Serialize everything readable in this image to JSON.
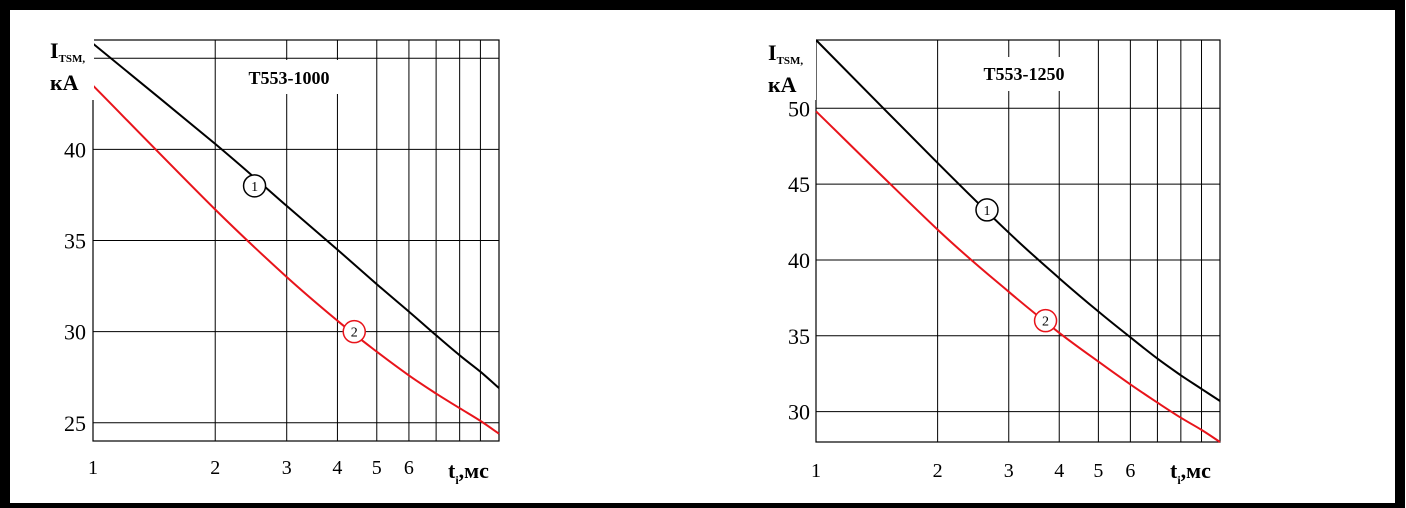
{
  "colors": {
    "border": "#000000",
    "grid": "#000000",
    "series_1": "#000000",
    "series_2": "#e8141b"
  },
  "chart_data": [
    {
      "type": "line",
      "title": "T553-1000",
      "ylabel": {
        "main": "I",
        "sub": "TSM,",
        "unit": "кА"
      },
      "xlabel": {
        "main": "t",
        "sub": "i",
        "unit": ",мс"
      },
      "xscale": "log",
      "xlim": [
        1,
        10
      ],
      "ylim": [
        24,
        46
      ],
      "x_ticks": [
        1,
        2,
        3,
        4,
        5,
        6
      ],
      "x_ticks_minor": [
        7,
        8,
        9
      ],
      "y_ticks": [
        25,
        30,
        35,
        40
      ],
      "y_grid": [
        25,
        30,
        35,
        40,
        45
      ],
      "grid": true,
      "series": [
        {
          "marker": "1",
          "marker_at": [
            2.5,
            38.0
          ],
          "x": [
            1,
            2,
            3,
            4,
            5,
            6,
            7,
            8,
            9,
            10
          ],
          "y": [
            45.8,
            40.3,
            36.9,
            34.5,
            32.6,
            31.1,
            29.8,
            28.7,
            27.8,
            26.9
          ]
        },
        {
          "marker": "2",
          "marker_at": [
            4.4,
            30.0
          ],
          "x": [
            1,
            2,
            3,
            4,
            5,
            6,
            7,
            8,
            9,
            10
          ],
          "y": [
            43.5,
            36.7,
            33.0,
            30.6,
            28.9,
            27.6,
            26.6,
            25.8,
            25.1,
            24.4
          ]
        }
      ]
    },
    {
      "type": "line",
      "title": "T553-1250",
      "ylabel": {
        "main": "I",
        "sub": "TSM,",
        "unit": "кА"
      },
      "xlabel": {
        "main": "t",
        "sub": "i",
        "unit": ",мс"
      },
      "xscale": "log",
      "xlim": [
        1,
        10
      ],
      "ylim": [
        28,
        54.5
      ],
      "x_ticks": [
        1,
        2,
        3,
        4,
        5,
        6
      ],
      "x_ticks_minor": [
        7,
        8,
        9
      ],
      "y_ticks": [
        30,
        35,
        40,
        45,
        50
      ],
      "y_grid": [
        30,
        35,
        40,
        45,
        50
      ],
      "grid": true,
      "series": [
        {
          "marker": "1",
          "marker_at": [
            2.65,
            43.3
          ],
          "x": [
            1,
            2,
            3,
            4,
            5,
            6,
            7,
            8,
            9,
            10
          ],
          "y": [
            54.5,
            46.4,
            41.8,
            38.8,
            36.6,
            34.9,
            33.5,
            32.4,
            31.5,
            30.7
          ]
        },
        {
          "marker": "2",
          "marker_at": [
            3.7,
            36.0
          ],
          "x": [
            1,
            2,
            3,
            4,
            5,
            6,
            7,
            8,
            9,
            10
          ],
          "y": [
            49.8,
            42.0,
            37.9,
            35.2,
            33.3,
            31.8,
            30.6,
            29.6,
            28.8,
            28.0
          ]
        }
      ]
    }
  ]
}
